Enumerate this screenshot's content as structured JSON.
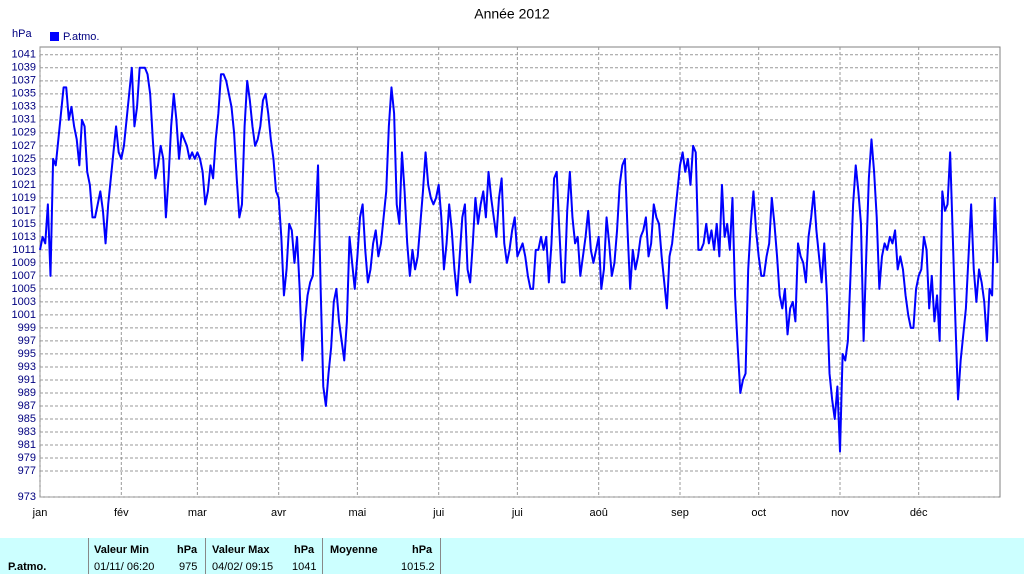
{
  "chart_data": {
    "type": "line",
    "title": "Année 2012",
    "y_label": "hPa",
    "series": [
      {
        "name": "P.atmo.",
        "color": "#0000ff",
        "values": [
          1011,
          1013,
          1012,
          1018,
          1007,
          1025,
          1024,
          1028,
          1032,
          1036,
          1036,
          1031,
          1033,
          1030,
          1028,
          1024,
          1031,
          1030,
          1023,
          1021,
          1016,
          1016,
          1018,
          1020,
          1017,
          1012,
          1018,
          1022,
          1026,
          1030,
          1026,
          1025,
          1027,
          1031,
          1035,
          1039,
          1030,
          1033,
          1039,
          1039,
          1039,
          1038,
          1035,
          1028,
          1022,
          1024,
          1027,
          1025,
          1016,
          1022,
          1030,
          1035,
          1031,
          1025,
          1029,
          1028,
          1027,
          1025,
          1026,
          1025,
          1026,
          1025,
          1023,
          1018,
          1020,
          1024,
          1022,
          1028,
          1032,
          1038,
          1038,
          1037,
          1035,
          1033,
          1029,
          1022,
          1016,
          1018,
          1030,
          1037,
          1034,
          1030,
          1027,
          1028,
          1030,
          1034,
          1035,
          1032,
          1028,
          1025,
          1020,
          1019,
          1013,
          1004,
          1008,
          1015,
          1014,
          1009,
          1013,
          1005,
          994,
          1000,
          1004,
          1006,
          1007,
          1015,
          1024,
          1005,
          990,
          987,
          992,
          996,
          1003,
          1005,
          1000,
          997,
          994,
          1000,
          1013,
          1009,
          1005,
          1010,
          1016,
          1018,
          1011,
          1006,
          1008,
          1012,
          1014,
          1010,
          1012,
          1016,
          1020,
          1030,
          1036,
          1032,
          1018,
          1015,
          1026,
          1020,
          1012,
          1007,
          1011,
          1008,
          1010,
          1015,
          1020,
          1026,
          1021,
          1019,
          1018,
          1019,
          1021,
          1016,
          1008,
          1012,
          1018,
          1014,
          1008,
          1004,
          1010,
          1016,
          1018,
          1008,
          1006,
          1012,
          1019,
          1015,
          1018,
          1020,
          1016,
          1023,
          1019,
          1016,
          1013,
          1019,
          1022,
          1012,
          1009,
          1011,
          1014,
          1016,
          1010,
          1011,
          1012,
          1010,
          1007,
          1005,
          1005,
          1011,
          1011,
          1013,
          1011,
          1013,
          1006,
          1012,
          1022,
          1023,
          1014,
          1006,
          1006,
          1017,
          1023,
          1016,
          1012,
          1013,
          1007,
          1010,
          1013,
          1017,
          1011,
          1009,
          1011,
          1013,
          1005,
          1008,
          1016,
          1012,
          1007,
          1009,
          1014,
          1021,
          1024,
          1025,
          1014,
          1005,
          1011,
          1008,
          1010,
          1013,
          1014,
          1016,
          1010,
          1012,
          1018,
          1016,
          1015,
          1010,
          1006,
          1002,
          1010,
          1012,
          1016,
          1020,
          1024,
          1026,
          1023,
          1025,
          1021,
          1027,
          1026,
          1011,
          1011,
          1012,
          1015,
          1012,
          1014,
          1011,
          1015,
          1010,
          1021,
          1013,
          1015,
          1011,
          1019,
          1004,
          996,
          989,
          991,
          992,
          1008,
          1015,
          1020,
          1014,
          1010,
          1007,
          1007,
          1010,
          1012,
          1019,
          1015,
          1010,
          1004,
          1002,
          1005,
          998,
          1002,
          1003,
          1000,
          1012,
          1010,
          1009,
          1006,
          1013,
          1016,
          1020,
          1014,
          1010,
          1006,
          1012,
          1004,
          992,
          988,
          985,
          990,
          980,
          995,
          994,
          997,
          1007,
          1018,
          1024,
          1020,
          1015,
          997,
          1010,
          1022,
          1028,
          1023,
          1016,
          1005,
          1010,
          1012,
          1011,
          1013,
          1012,
          1014,
          1008,
          1010,
          1008,
          1004,
          1001,
          999,
          999,
          1005,
          1007,
          1008,
          1013,
          1011,
          1002,
          1007,
          1000,
          1004,
          997,
          1020,
          1017,
          1018,
          1026,
          1013,
          1000,
          988,
          994,
          998,
          1002,
          1010,
          1018,
          1008,
          1003,
          1008,
          1006,
          1003,
          997,
          1005,
          1004,
          1019,
          1009
        ]
      }
    ],
    "xlim": [
      0,
      366
    ],
    "xticks": [
      {
        "value": 0,
        "label": "jan"
      },
      {
        "value": 31,
        "label": "fév"
      },
      {
        "value": 60,
        "label": "mar"
      },
      {
        "value": 91,
        "label": "avr"
      },
      {
        "value": 121,
        "label": "mai"
      },
      {
        "value": 152,
        "label": "jui"
      },
      {
        "value": 182,
        "label": "jui"
      },
      {
        "value": 213,
        "label": "aoû"
      },
      {
        "value": 244,
        "label": "sep"
      },
      {
        "value": 274,
        "label": "oct"
      },
      {
        "value": 305,
        "label": "nov"
      },
      {
        "value": 335,
        "label": "déc"
      }
    ],
    "ylim": [
      973,
      1042.2
    ],
    "yticks": [
      973,
      977,
      979,
      981,
      983,
      985,
      987,
      989,
      991,
      993,
      995,
      997,
      999,
      1001,
      1003,
      1005,
      1007,
      1009,
      1011,
      1013,
      1015,
      1017,
      1019,
      1021,
      1023,
      1025,
      1027,
      1029,
      1031,
      1033,
      1035,
      1037,
      1039,
      1041
    ],
    "grid": true
  },
  "summary": {
    "row_label": "P.atmo.",
    "columns": [
      {
        "header": "Valeur Min",
        "unit": "hPa",
        "date": "01/11/ 06:20",
        "value": "975"
      },
      {
        "header": "Valeur Max",
        "unit": "hPa",
        "date": "04/02/ 09:15",
        "value": "1041"
      },
      {
        "header": "Moyenne",
        "unit": "hPa",
        "value": "1015.2"
      }
    ]
  }
}
